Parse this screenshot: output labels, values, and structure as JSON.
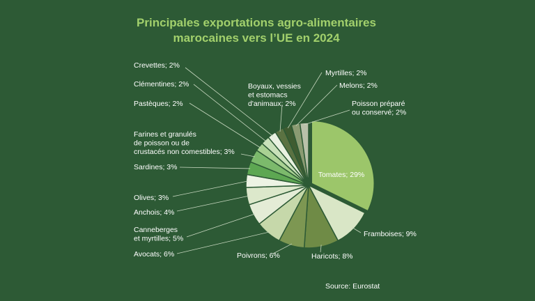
{
  "chart_data": {
    "type": "pie",
    "title": "Principales exportations agro-alimentaires\nmarocaines vers l’UE en 2024",
    "categories": [
      "Tomates; 29%",
      "Framboises; 9%",
      "Haricots; 8%",
      "Poivrons; 6%",
      "Avocats; 6%",
      "Canneberges\net myrtilles; 5%",
      "Anchois; 4%",
      "Olives; 3%",
      "Sardines; 3%",
      "Farines et granulés\nde poisson ou de\ncrustacés non comestibles; 3%",
      "Pastèques; 2%",
      "Clémentines; 2%",
      "Crevettes; 2%",
      "Boyaux, vessies\net estomacs\nd'animaux; 2%",
      "Myrtilles; 2%",
      "Melons; 2%",
      "Poisson préparé\nou conservé; 2%"
    ],
    "values": [
      29,
      9,
      8,
      6,
      6,
      5,
      4,
      3,
      3,
      3,
      2,
      2,
      2,
      2,
      2,
      2,
      2
    ],
    "colors": [
      "#9cc66a",
      "#d9e6c6",
      "#6f8b46",
      "#7d9752",
      "#c6d8aa",
      "#e4ecd6",
      "#dce8cb",
      "#edf3e4",
      "#5da752",
      "#7cba6c",
      "#a9d193",
      "#c9e1ba",
      "#e9f1e1",
      "#5b7242",
      "#3f5c31",
      "#8b9b72",
      "#b9c1aa"
    ],
    "source": "Source: Eurostat"
  }
}
